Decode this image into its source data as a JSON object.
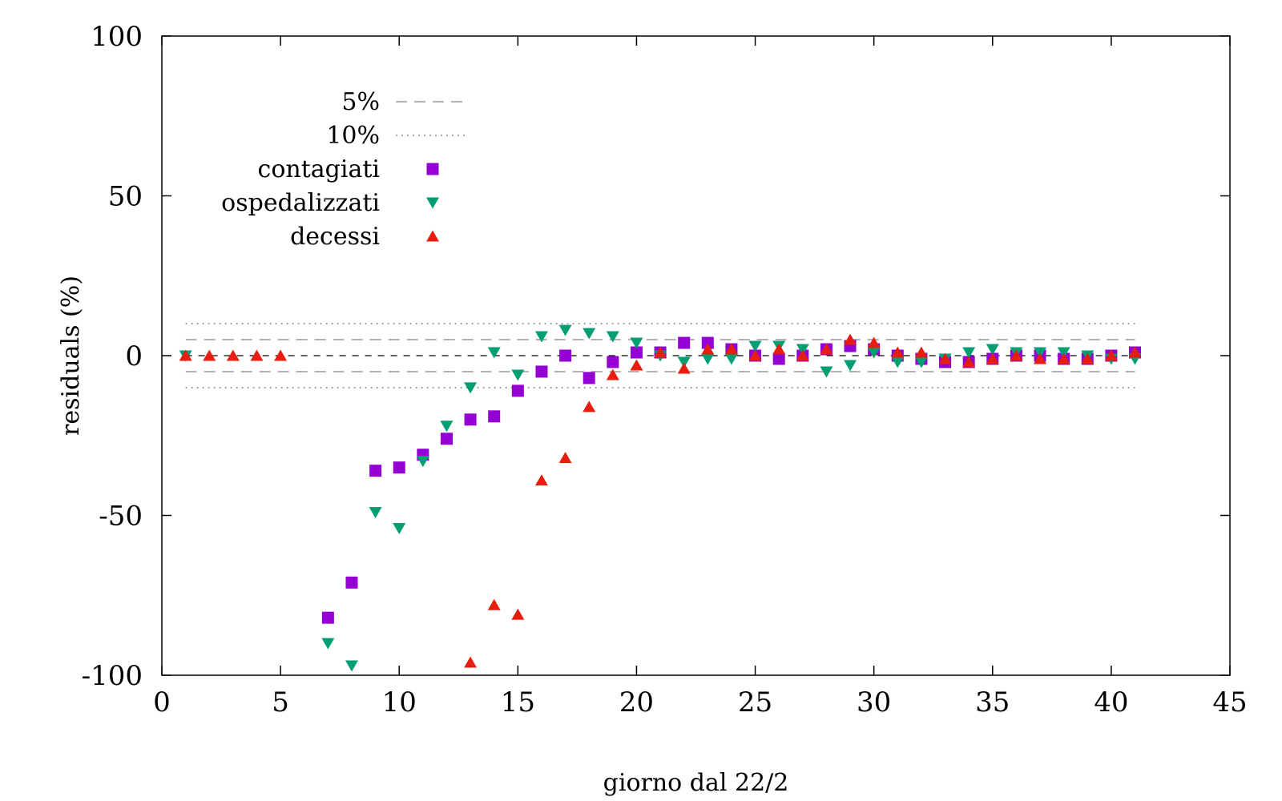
{
  "chart_data": {
    "type": "scatter",
    "title": "",
    "xlabel": "giorno dal 22/2",
    "ylabel": "residuals (%)",
    "xlim": [
      0,
      45
    ],
    "ylim": [
      -100,
      100
    ],
    "xticks": [
      0,
      5,
      10,
      15,
      20,
      25,
      30,
      35,
      40,
      45
    ],
    "yticks": [
      -100,
      -50,
      0,
      50,
      100
    ],
    "grid": false,
    "legend_position": "top-left",
    "reference_lines": [
      {
        "name": "5%",
        "values": [
          5,
          -5
        ],
        "style": "dashed",
        "color": "#999999"
      },
      {
        "name": "10%",
        "values": [
          10,
          -10
        ],
        "style": "dotted",
        "color": "#888888"
      }
    ],
    "series": [
      {
        "name": "contagiati",
        "marker": "square",
        "color": "#9400d3",
        "x": [
          7,
          8,
          9,
          10,
          11,
          12,
          13,
          14,
          15,
          16,
          17,
          18,
          19,
          20,
          21,
          22,
          23,
          24,
          25,
          26,
          27,
          28,
          29,
          30,
          31,
          32,
          33,
          34,
          35,
          36,
          37,
          38,
          39,
          40,
          41
        ],
        "y": [
          -82,
          -71,
          -36,
          -35,
          -31,
          -26,
          -20,
          -19,
          -11,
          -5,
          0,
          -7,
          -2,
          1,
          1,
          4,
          4,
          2,
          0,
          -1,
          0,
          2,
          3,
          2,
          0,
          -1,
          -2,
          -2,
          -1,
          0,
          0,
          -1,
          -1,
          0,
          1
        ]
      },
      {
        "name": "ospedalizzati",
        "marker": "triangle-down",
        "color": "#009e73",
        "x": [
          1,
          7,
          8,
          9,
          10,
          11,
          12,
          13,
          14,
          15,
          16,
          17,
          18,
          19,
          20,
          21,
          22,
          23,
          24,
          25,
          26,
          27,
          28,
          29,
          30,
          31,
          32,
          33,
          34,
          35,
          36,
          37,
          38,
          39,
          40,
          41
        ],
        "y": [
          0,
          -90,
          -97,
          -49,
          -54,
          -33,
          -22,
          -10,
          1,
          -6,
          6,
          8,
          7,
          6,
          4,
          0,
          -2,
          -1,
          -1,
          3,
          3,
          2,
          -5,
          -3,
          1,
          -2,
          -2,
          -1,
          1,
          2,
          1,
          1,
          1,
          0,
          -1,
          -1
        ]
      },
      {
        "name": "decessi",
        "marker": "triangle-up",
        "color": "#e51e10",
        "x": [
          1,
          2,
          3,
          4,
          5,
          13,
          14,
          15,
          16,
          17,
          18,
          19,
          20,
          21,
          22,
          23,
          24,
          25,
          26,
          27,
          28,
          29,
          30,
          31,
          32,
          33,
          34,
          35,
          36,
          37,
          38,
          39,
          40,
          41
        ],
        "y": [
          0,
          0,
          0,
          0,
          0,
          -96,
          -78,
          -81,
          -39,
          -32,
          -16,
          -6,
          -3,
          1,
          -4,
          2,
          2,
          0,
          2,
          0,
          2,
          5,
          4,
          1,
          1,
          -1,
          -2,
          -1,
          0,
          -1,
          -1,
          -1,
          0,
          1
        ]
      }
    ]
  }
}
